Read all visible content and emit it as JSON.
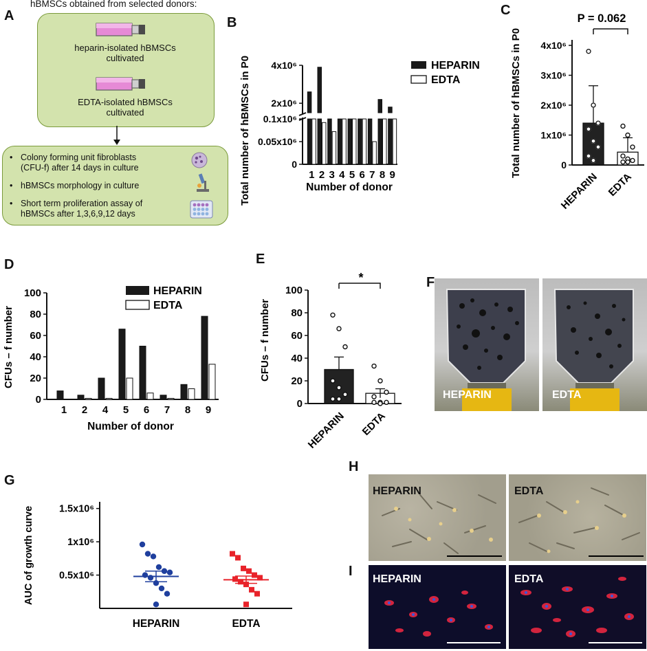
{
  "panels": {
    "A": "A",
    "B": "B",
    "C": "C",
    "D": "D",
    "E": "E",
    "F": "F",
    "G": "G",
    "H": "H",
    "I": "I"
  },
  "panelA": {
    "header": "hBMSCs obtained from selected donors:",
    "flask1": "heparin-isolated hBMSCs cultivated",
    "flask1_l1": "heparin-isolated hBMSCs",
    "flask1_l2": "cultivated",
    "flask2_l1": "EDTA-isolated hBMSCs",
    "flask2_l2": "cultivated",
    "bullets": [
      {
        "l1": "Colony forming unit fibroblasts",
        "l2": "(CFU-f) after 14 days in culture"
      },
      {
        "l1": "hBMSCs morphology in culture",
        "l2": ""
      },
      {
        "l1": "Short term proliferation assay of",
        "l2": "hBMSCs after 1,3,6,9,12 days"
      }
    ],
    "bullet_mark": "•"
  },
  "legend": {
    "heparin": "HEPARIN",
    "edta": "EDTA"
  },
  "panelF": {
    "left": "HEPARIN",
    "right": "EDTA"
  },
  "panelH": {
    "left": "HEPARIN",
    "right": "EDTA"
  },
  "panelI": {
    "left": "HEPARIN",
    "right": "EDTA"
  },
  "colors": {
    "heparin_bar": "#1a1a1a",
    "edta_bar": "#ffffff",
    "g_heparin": "#1f3f9e",
    "g_edta": "#e8232a",
    "box_fill": "#d3e3ad"
  },
  "chart_data": [
    {
      "id": "B",
      "type": "bar",
      "xlabel": "Number of donor",
      "ylabel": "Total number of  hBMSCs in P0",
      "categories": [
        "1",
        "2",
        "3",
        "4",
        "5",
        "6",
        "7",
        "8",
        "9"
      ],
      "series": [
        {
          "name": "HEPARIN",
          "values": [
            2600000,
            3900000,
            100000,
            120000,
            130000,
            118000,
            105000,
            2200000,
            1800000
          ]
        },
        {
          "name": "EDTA",
          "values": [
            100000,
            92000,
            72000,
            120000,
            135000,
            112000,
            50000,
            1400000,
            105000
          ]
        }
      ],
      "broken_axis": true,
      "yticks_lower": [
        "0",
        "0.05x10⁶",
        "0.1x10⁶"
      ],
      "yticks_upper": [
        "2x10⁶",
        "4x10⁶"
      ]
    },
    {
      "id": "C",
      "type": "bar",
      "ylabel": "Total number of  hBMSCs in P0",
      "categories": [
        "HEPARIN",
        "EDTA"
      ],
      "values": [
        1400000,
        430000
      ],
      "errors": [
        1250000,
        480000
      ],
      "points": [
        [
          3800000,
          2000000,
          1400000,
          1200000,
          800000,
          600000,
          300000,
          150000
        ],
        [
          1300000,
          1000000,
          600000,
          300000,
          200000,
          150000,
          100000,
          100000
        ]
      ],
      "yticks": [
        "0",
        "1x10⁶",
        "2x10⁶",
        "3x10⁶",
        "4x10⁶"
      ],
      "ylim": [
        0,
        4500000
      ],
      "annotation": "P = 0.062"
    },
    {
      "id": "D",
      "type": "bar",
      "xlabel": "Number of donor",
      "ylabel": "CFUs – f number",
      "categories": [
        "1",
        "2",
        "4",
        "5",
        "6",
        "7",
        "8",
        "9"
      ],
      "series": [
        {
          "name": "HEPARIN",
          "values": [
            8,
            4,
            20,
            66,
            50,
            4,
            14,
            78
          ]
        },
        {
          "name": "EDTA",
          "values": [
            0,
            1,
            1,
            20,
            6,
            1,
            10,
            33
          ]
        }
      ],
      "yticks": [
        "0",
        "20",
        "40",
        "60",
        "80",
        "100"
      ],
      "ylim": [
        0,
        100
      ]
    },
    {
      "id": "E",
      "type": "bar",
      "ylabel": "CFUs – f number",
      "categories": [
        "HEPARIN",
        "EDTA"
      ],
      "values": [
        30,
        9
      ],
      "errors": [
        11,
        4
      ],
      "points": [
        [
          78,
          66,
          50,
          20,
          14,
          8,
          4,
          4
        ],
        [
          33,
          20,
          10,
          6,
          1,
          1,
          1,
          0
        ]
      ],
      "yticks": [
        "0",
        "20",
        "40",
        "60",
        "80",
        "100"
      ],
      "ylim": [
        0,
        100
      ],
      "annotation": "*"
    },
    {
      "id": "G",
      "type": "scatter",
      "ylabel": "AUC of growth curve",
      "categories": [
        "HEPARIN",
        "EDTA"
      ],
      "points": [
        [
          960000,
          820000,
          780000,
          620000,
          560000,
          540000,
          500000,
          460000,
          380000,
          300000,
          220000,
          60000
        ],
        [
          820000,
          760000,
          600000,
          560000,
          500000,
          460000,
          440000,
          400000,
          360000,
          280000,
          220000,
          60000
        ]
      ],
      "means": [
        480000,
        430000
      ],
      "sems": [
        80000,
        55000
      ],
      "yticks": [
        "0.5x10⁶",
        "1x10⁶",
        "1.5x10⁶"
      ],
      "ylim": [
        0,
        1600000
      ]
    }
  ]
}
